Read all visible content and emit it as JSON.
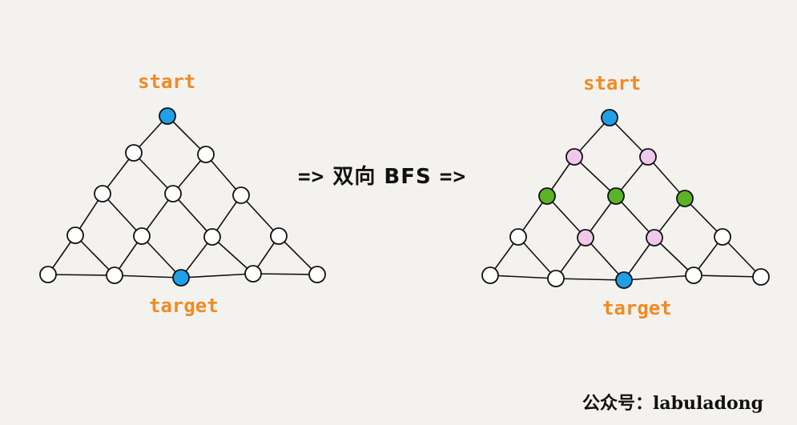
{
  "labels": {
    "left_start": "start",
    "left_target": "target",
    "right_start": "start",
    "right_target": "target",
    "arrow_left": "=>",
    "title": "双向 BFS",
    "arrow_right": "=>",
    "watermark": "公众号：labuladong"
  },
  "colors": {
    "blue": "#1e9fe8",
    "pink": "#f0c8ea",
    "green": "#5bb328",
    "white": "#ffffff",
    "orange": "#f08a24",
    "stroke": "#111111"
  },
  "graphs": [
    {
      "id": "left",
      "node_colors": [
        "blue",
        "white",
        "white",
        "white",
        "white",
        "white",
        "white",
        "white",
        "white",
        "white",
        "white",
        "white",
        "white",
        "blue",
        "white",
        "white"
      ]
    },
    {
      "id": "right",
      "node_colors": [
        "blue",
        "pink",
        "pink",
        "green",
        "green",
        "green",
        "white",
        "pink",
        "pink",
        "white",
        "white",
        "white",
        "white",
        "blue",
        "white",
        "white"
      ]
    }
  ]
}
